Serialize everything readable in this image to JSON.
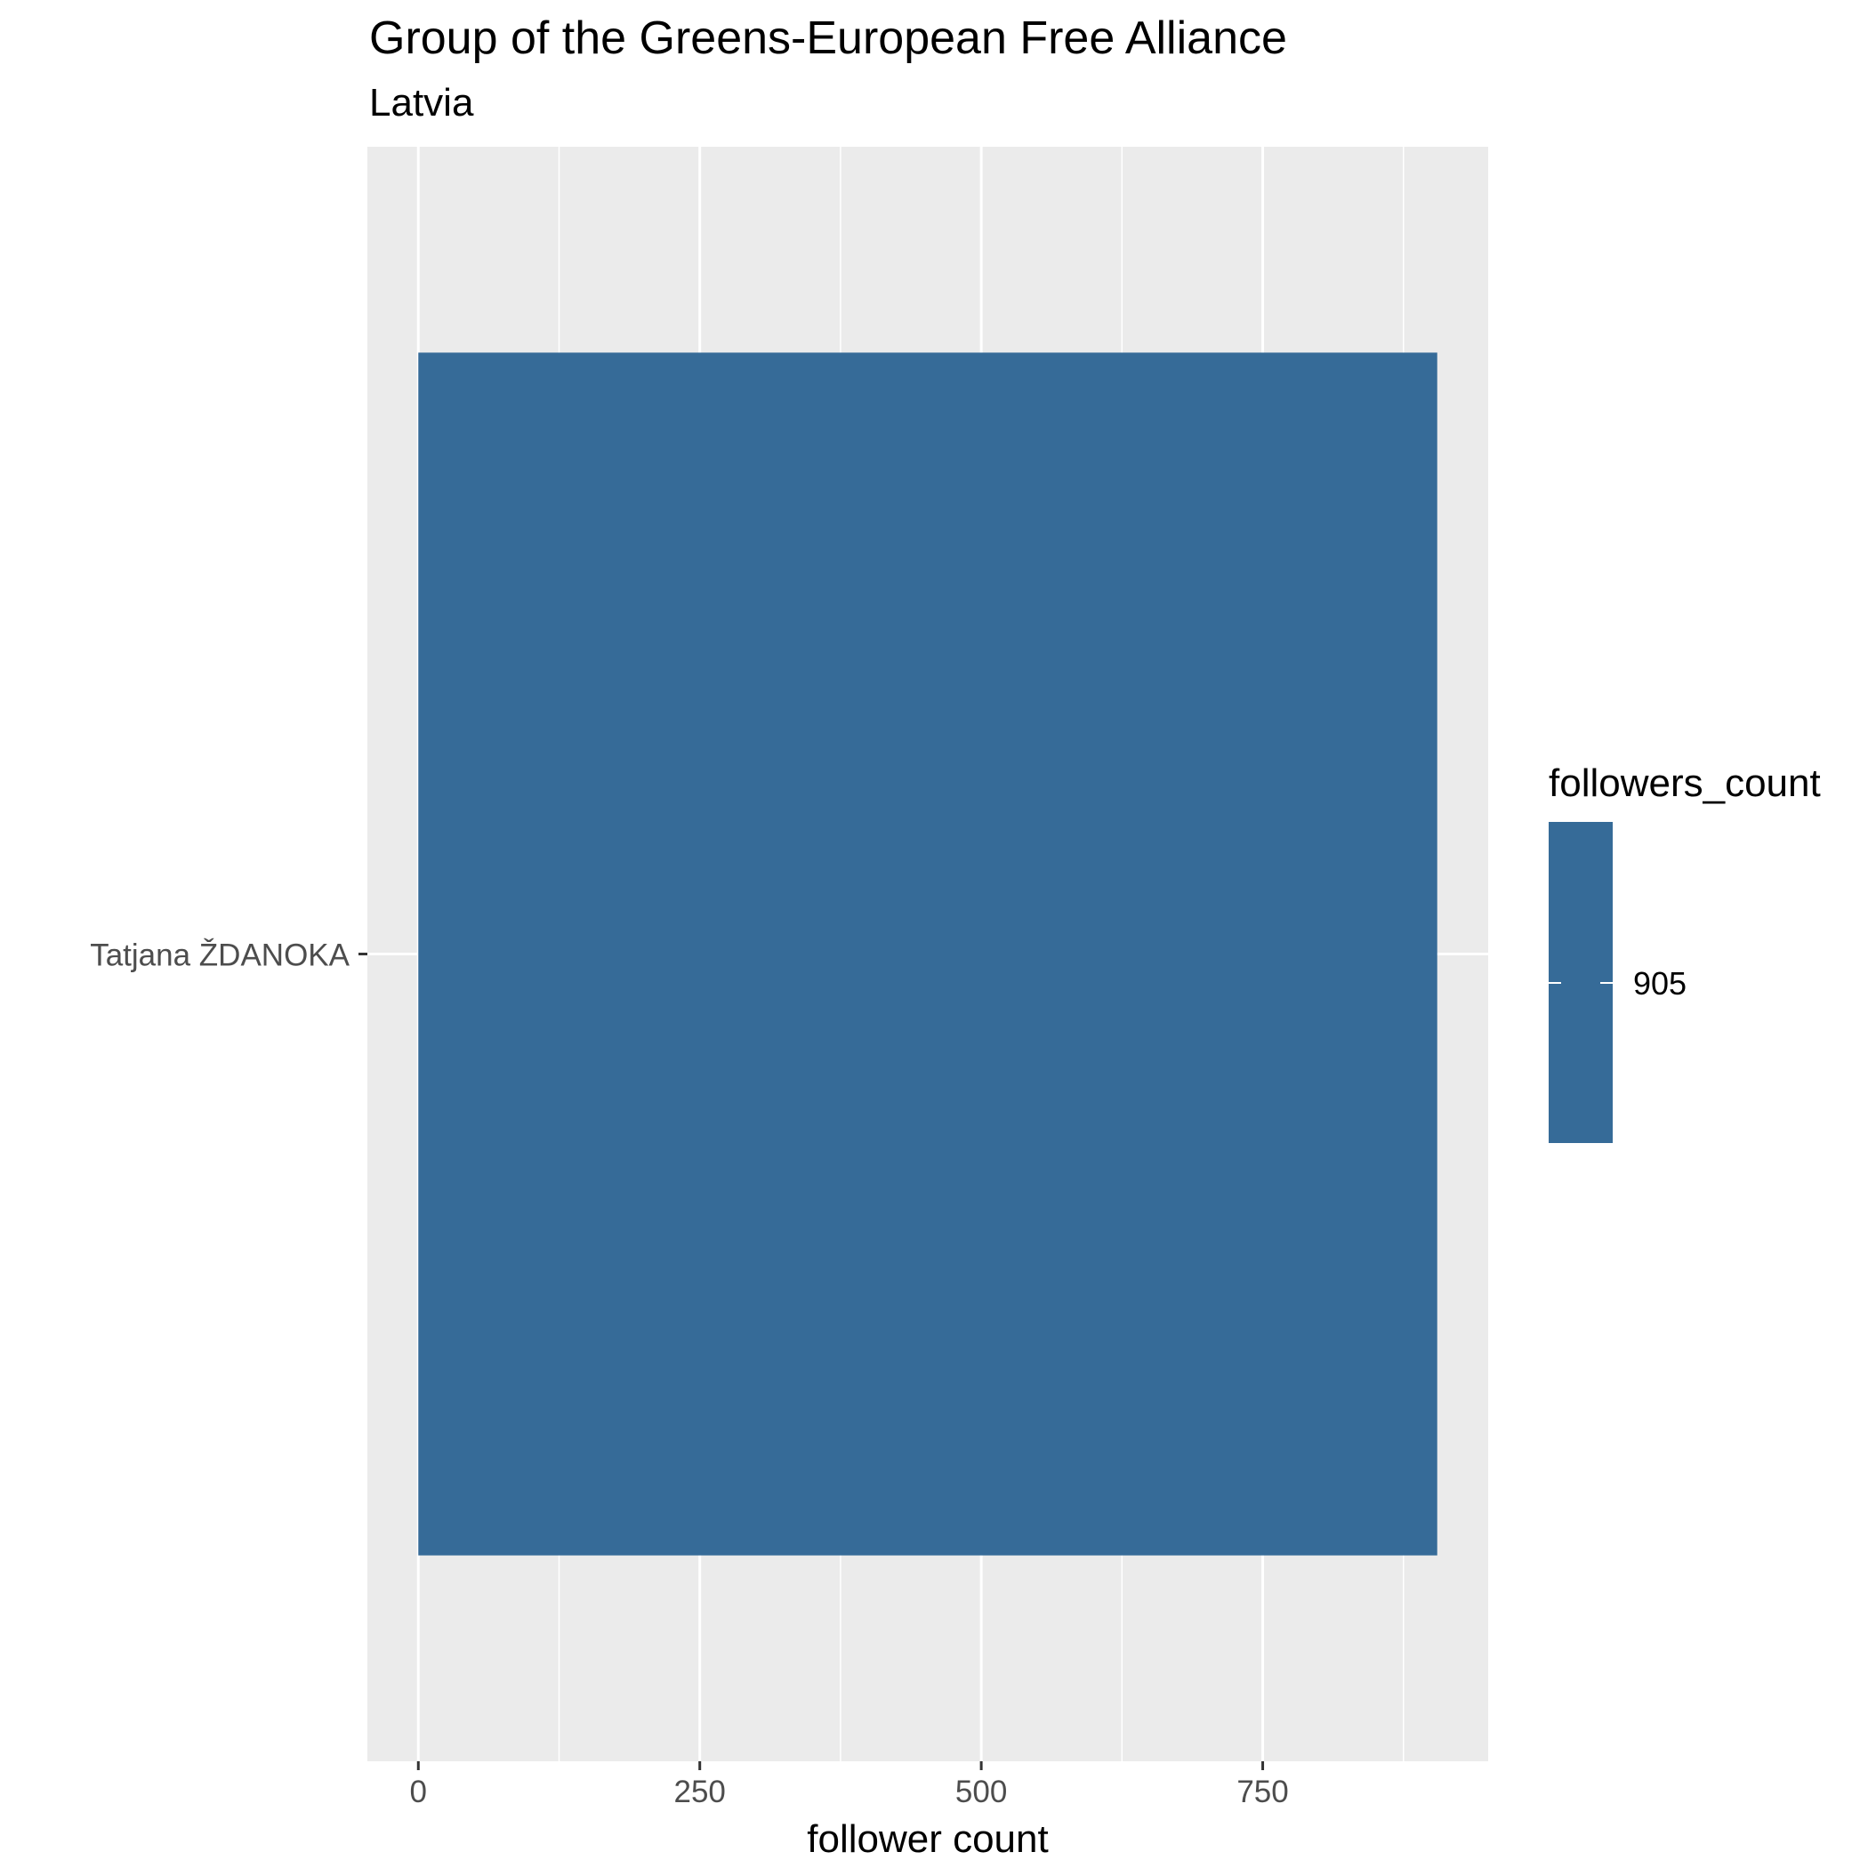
{
  "chart_data": {
    "type": "bar",
    "orientation": "horizontal",
    "title": "Group of the Greens-European Free Alliance",
    "subtitle": "Latvia",
    "categories": [
      "Tatjana ŽDANOKA"
    ],
    "values": [
      905
    ],
    "xlabel": "follower count",
    "ylabel": "",
    "xlim": [
      -45.25,
      950.25
    ],
    "x_ticks": [
      0,
      250,
      500,
      750
    ],
    "x_tick_labels": [
      "0",
      "250",
      "500",
      "750"
    ],
    "grid": true,
    "legend": {
      "title": "followers_count",
      "position": "right",
      "labels": [
        "905"
      ]
    },
    "colors": {
      "bar": "#366b98",
      "panel": "#ebebeb",
      "grid": "#ffffff"
    }
  }
}
